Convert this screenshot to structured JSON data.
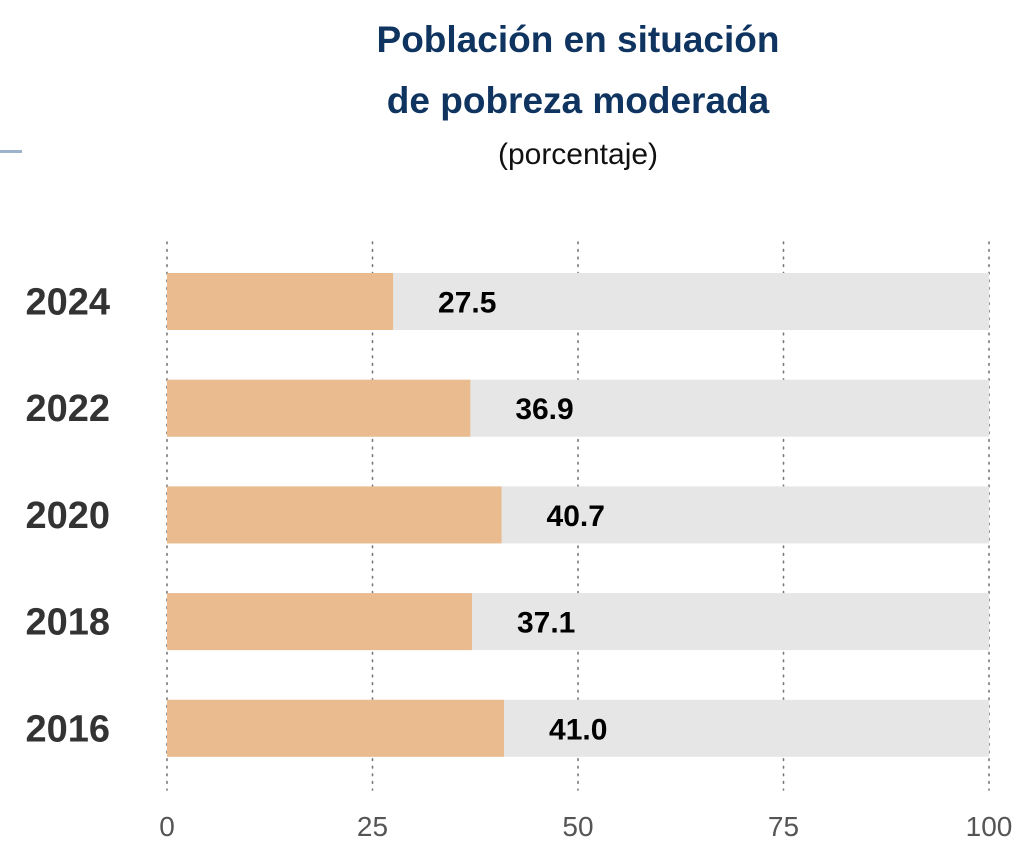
{
  "header": {
    "title_line1": "Población en situación",
    "title_line2": "de pobreza moderada",
    "subtitle": "(porcentaje)"
  },
  "colors": {
    "title": "#0f3460",
    "bar_fill": "#e9bb8e",
    "bar_track": "#e6e6e6",
    "grid": "#777777"
  },
  "chart_data": {
    "type": "bar",
    "orientation": "horizontal",
    "title": "Población en situación de pobreza moderada",
    "subtitle": "(porcentaje)",
    "xlabel": "",
    "ylabel": "",
    "categories": [
      "2024",
      "2022",
      "2020",
      "2018",
      "2016"
    ],
    "values": [
      27.5,
      36.9,
      40.7,
      37.1,
      41.0
    ],
    "value_labels": [
      "27.5",
      "36.9",
      "40.7",
      "37.1",
      "41.0"
    ],
    "xlim": [
      0,
      100
    ],
    "xticks": [
      0,
      25,
      50,
      75,
      100
    ],
    "xtick_labels": [
      "0",
      "25",
      "50",
      "75",
      "100"
    ],
    "grid": "vertical dotted",
    "legend": "none",
    "background_track_max": 100
  }
}
